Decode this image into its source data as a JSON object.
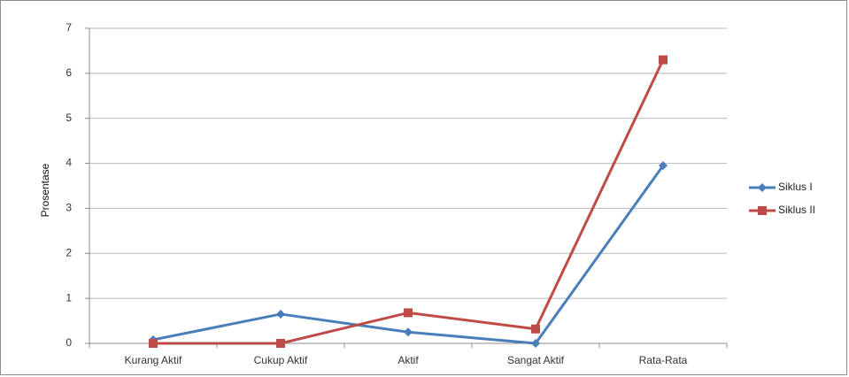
{
  "chart_data": {
    "type": "line",
    "ylabel": "Prosentase",
    "xlabel": "",
    "title": "",
    "categories": [
      "Kurang Aktif",
      "Cukup Aktif",
      "Aktif",
      "Sangat Aktif",
      "Rata-Rata"
    ],
    "ylim": [
      0,
      7
    ],
    "yticks": [
      0,
      1,
      2,
      3,
      4,
      5,
      6,
      7
    ],
    "grid": "horizontal",
    "legend": "right",
    "series": [
      {
        "name": "Siklus I",
        "values": [
          0.08,
          0.65,
          0.25,
          0.0,
          3.95
        ],
        "color": "#4a7ebb",
        "marker": "diamond"
      },
      {
        "name": "Siklus II",
        "values": [
          0.0,
          0.0,
          0.68,
          0.32,
          6.3
        ],
        "color": "#be4b48",
        "marker": "square"
      }
    ]
  }
}
